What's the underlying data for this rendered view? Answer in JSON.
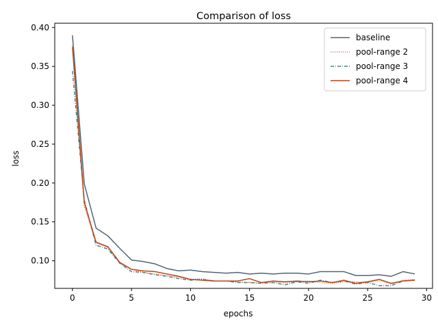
{
  "chart_data": {
    "type": "line",
    "title": "Comparison of loss",
    "xlabel": "epochs",
    "ylabel": "loss",
    "xlim": [
      -1.5,
      30.5
    ],
    "ylim": [
      0.0645,
      0.4055
    ],
    "xticks": [
      0,
      5,
      10,
      15,
      20,
      25,
      30
    ],
    "yticks": [
      0.1,
      0.15,
      0.2,
      0.25,
      0.3,
      0.35,
      0.4
    ],
    "ytick_labels": [
      "0.10",
      "0.15",
      "0.20",
      "0.25",
      "0.30",
      "0.35",
      "0.40"
    ],
    "grid": false,
    "legend_position": "top-right",
    "x": [
      0,
      1,
      2,
      3,
      4,
      5,
      6,
      7,
      8,
      9,
      10,
      11,
      12,
      13,
      14,
      15,
      16,
      17,
      18,
      19,
      20,
      21,
      22,
      23,
      24,
      25,
      26,
      27,
      28,
      29
    ],
    "series": [
      {
        "name": "baseline",
        "color": "#4e6575",
        "style": "solid",
        "values": [
          0.39,
          0.199,
          0.142,
          0.132,
          0.116,
          0.101,
          0.099,
          0.096,
          0.09,
          0.087,
          0.088,
          0.086,
          0.085,
          0.084,
          0.085,
          0.083,
          0.084,
          0.083,
          0.084,
          0.084,
          0.083,
          0.086,
          0.086,
          0.086,
          0.081,
          0.081,
          0.082,
          0.08,
          0.086,
          0.083
        ]
      },
      {
        "name": "pool-range 2",
        "color": "#e07850",
        "style": "dotted",
        "values": [
          0.377,
          0.17,
          0.123,
          0.117,
          0.097,
          0.089,
          0.085,
          0.083,
          0.081,
          0.079,
          0.076,
          0.077,
          0.074,
          0.074,
          0.073,
          0.072,
          0.071,
          0.073,
          0.072,
          0.073,
          0.074,
          0.072,
          0.071,
          0.073,
          0.073,
          0.072,
          0.075,
          0.07,
          0.075,
          0.076
        ]
      },
      {
        "name": "pool-range 3",
        "color": "#4e8080",
        "style": "dashdot",
        "values": [
          0.344,
          0.178,
          0.12,
          0.115,
          0.097,
          0.086,
          0.085,
          0.082,
          0.08,
          0.077,
          0.075,
          0.076,
          0.074,
          0.074,
          0.072,
          0.072,
          0.071,
          0.072,
          0.069,
          0.073,
          0.071,
          0.075,
          0.072,
          0.074,
          0.07,
          0.072,
          0.068,
          0.068,
          0.074,
          0.075
        ]
      },
      {
        "name": "pool-range 4",
        "color": "#b5451b",
        "style": "solid",
        "values": [
          0.375,
          0.175,
          0.124,
          0.118,
          0.098,
          0.089,
          0.087,
          0.086,
          0.083,
          0.08,
          0.076,
          0.075,
          0.074,
          0.074,
          0.074,
          0.077,
          0.072,
          0.074,
          0.073,
          0.074,
          0.073,
          0.074,
          0.072,
          0.075,
          0.071,
          0.073,
          0.076,
          0.071,
          0.074,
          0.075
        ]
      }
    ]
  }
}
